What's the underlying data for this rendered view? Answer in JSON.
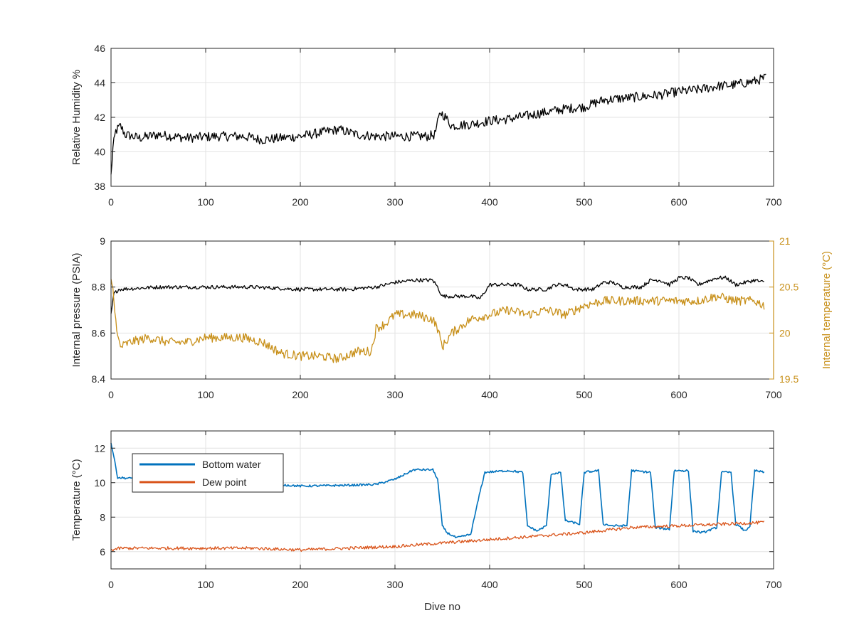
{
  "chart_data": [
    {
      "type": "line",
      "ylabel": "Relative Humidity %",
      "xlim": [
        0,
        700
      ],
      "ylim": [
        38,
        46
      ],
      "x_ticks": [
        0,
        100,
        200,
        300,
        400,
        500,
        600,
        700
      ],
      "y_ticks": [
        38,
        40,
        42,
        44,
        46
      ],
      "grid": true,
      "series": [
        {
          "color": "#000000",
          "noise": 0.28,
          "points": [
            [
              0,
              38.6
            ],
            [
              2,
              40.2
            ],
            [
              5,
              41.2
            ],
            [
              10,
              41.5
            ],
            [
              15,
              41.0
            ],
            [
              30,
              40.8
            ],
            [
              50,
              41.0
            ],
            [
              80,
              40.8
            ],
            [
              110,
              40.9
            ],
            [
              140,
              40.9
            ],
            [
              160,
              40.7
            ],
            [
              180,
              40.8
            ],
            [
              200,
              40.9
            ],
            [
              220,
              41.1
            ],
            [
              240,
              41.3
            ],
            [
              260,
              41.0
            ],
            [
              280,
              40.9
            ],
            [
              300,
              40.9
            ],
            [
              320,
              40.9
            ],
            [
              335,
              40.9
            ],
            [
              342,
              41.0
            ],
            [
              348,
              42.3
            ],
            [
              352,
              42.1
            ],
            [
              360,
              41.5
            ],
            [
              380,
              41.6
            ],
            [
              400,
              41.8
            ],
            [
              420,
              41.9
            ],
            [
              440,
              42.1
            ],
            [
              460,
              42.3
            ],
            [
              480,
              42.5
            ],
            [
              500,
              42.6
            ],
            [
              520,
              43.0
            ],
            [
              540,
              43.1
            ],
            [
              560,
              43.2
            ],
            [
              580,
              43.3
            ],
            [
              600,
              43.5
            ],
            [
              620,
              43.6
            ],
            [
              640,
              43.8
            ],
            [
              660,
              43.9
            ],
            [
              680,
              44.1
            ],
            [
              692,
              44.3
            ]
          ]
        }
      ]
    },
    {
      "type": "line",
      "ylabel": "Internal pressure (PSIA)",
      "y2label": "Internal temperature (°C)",
      "xlim": [
        0,
        700
      ],
      "ylim": [
        8.4,
        9
      ],
      "y2lim": [
        19.5,
        21
      ],
      "x_ticks": [
        0,
        100,
        200,
        300,
        400,
        500,
        600,
        700
      ],
      "y_ticks": [
        8.4,
        8.6,
        8.8,
        9
      ],
      "y2_ticks": [
        19.5,
        20,
        20.5,
        21
      ],
      "y2_tick_labels": [
        "19.5",
        "20",
        "20.5",
        "21"
      ],
      "grid": true,
      "series": [
        {
          "axis": "left",
          "color": "#000000",
          "noise": 0.008,
          "points": [
            [
              0,
              8.68
            ],
            [
              3,
              8.77
            ],
            [
              8,
              8.79
            ],
            [
              50,
              8.8
            ],
            [
              100,
              8.8
            ],
            [
              150,
              8.8
            ],
            [
              200,
              8.79
            ],
            [
              250,
              8.79
            ],
            [
              280,
              8.8
            ],
            [
              300,
              8.82
            ],
            [
              320,
              8.83
            ],
            [
              340,
              8.83
            ],
            [
              345,
              8.8
            ],
            [
              350,
              8.76
            ],
            [
              360,
              8.76
            ],
            [
              380,
              8.76
            ],
            [
              390,
              8.75
            ],
            [
              400,
              8.81
            ],
            [
              420,
              8.81
            ],
            [
              430,
              8.81
            ],
            [
              440,
              8.79
            ],
            [
              460,
              8.79
            ],
            [
              470,
              8.81
            ],
            [
              480,
              8.81
            ],
            [
              490,
              8.79
            ],
            [
              510,
              8.79
            ],
            [
              520,
              8.82
            ],
            [
              530,
              8.82
            ],
            [
              540,
              8.8
            ],
            [
              560,
              8.8
            ],
            [
              570,
              8.83
            ],
            [
              580,
              8.83
            ],
            [
              590,
              8.81
            ],
            [
              600,
              8.84
            ],
            [
              610,
              8.84
            ],
            [
              620,
              8.81
            ],
            [
              640,
              8.84
            ],
            [
              650,
              8.84
            ],
            [
              660,
              8.81
            ],
            [
              670,
              8.82
            ],
            [
              680,
              8.83
            ],
            [
              690,
              8.82
            ]
          ]
        },
        {
          "axis": "right",
          "color": "#C8901A",
          "noise": 0.05,
          "points": [
            [
              0,
              20.6
            ],
            [
              3,
              20.4
            ],
            [
              6,
              20.0
            ],
            [
              10,
              19.85
            ],
            [
              20,
              19.9
            ],
            [
              40,
              19.95
            ],
            [
              60,
              19.9
            ],
            [
              80,
              19.9
            ],
            [
              100,
              19.95
            ],
            [
              120,
              19.95
            ],
            [
              140,
              19.95
            ],
            [
              160,
              19.9
            ],
            [
              180,
              19.78
            ],
            [
              200,
              19.75
            ],
            [
              220,
              19.75
            ],
            [
              240,
              19.72
            ],
            [
              260,
              19.8
            ],
            [
              275,
              19.8
            ],
            [
              280,
              20.05
            ],
            [
              290,
              20.1
            ],
            [
              300,
              20.2
            ],
            [
              320,
              20.2
            ],
            [
              340,
              20.15
            ],
            [
              345,
              20.05
            ],
            [
              350,
              19.85
            ],
            [
              360,
              20.0
            ],
            [
              380,
              20.15
            ],
            [
              400,
              20.2
            ],
            [
              420,
              20.25
            ],
            [
              440,
              20.2
            ],
            [
              460,
              20.25
            ],
            [
              480,
              20.2
            ],
            [
              500,
              20.3
            ],
            [
              520,
              20.35
            ],
            [
              540,
              20.35
            ],
            [
              560,
              20.35
            ],
            [
              580,
              20.35
            ],
            [
              600,
              20.35
            ],
            [
              620,
              20.35
            ],
            [
              640,
              20.4
            ],
            [
              660,
              20.35
            ],
            [
              680,
              20.35
            ],
            [
              690,
              20.3
            ]
          ]
        }
      ]
    },
    {
      "type": "line",
      "xlabel": "Dive no",
      "ylabel": "Temperature (°C)",
      "xlim": [
        0,
        700
      ],
      "ylim": [
        5,
        13
      ],
      "x_ticks": [
        0,
        100,
        200,
        300,
        400,
        500,
        600,
        700
      ],
      "y_ticks": [
        6,
        8,
        10,
        12
      ],
      "grid": true,
      "legend": "top-left",
      "series": [
        {
          "name": "Bottom water",
          "color": "#0072BD",
          "noise": 0.06,
          "points": [
            [
              0,
              12.3
            ],
            [
              3,
              11.5
            ],
            [
              7,
              10.3
            ],
            [
              20,
              10.25
            ],
            [
              30,
              10.3
            ],
            [
              50,
              10.1
            ],
            [
              100,
              10.05
            ],
            [
              150,
              10.0
            ],
            [
              200,
              9.8
            ],
            [
              250,
              9.85
            ],
            [
              280,
              9.9
            ],
            [
              300,
              10.2
            ],
            [
              320,
              10.75
            ],
            [
              340,
              10.75
            ],
            [
              345,
              10.2
            ],
            [
              350,
              7.5
            ],
            [
              355,
              7.1
            ],
            [
              365,
              6.8
            ],
            [
              380,
              7.0
            ],
            [
              390,
              9.5
            ],
            [
              395,
              10.6
            ],
            [
              420,
              10.7
            ],
            [
              435,
              10.6
            ],
            [
              440,
              7.5
            ],
            [
              450,
              7.2
            ],
            [
              460,
              7.5
            ],
            [
              465,
              10.5
            ],
            [
              475,
              10.6
            ],
            [
              480,
              7.8
            ],
            [
              495,
              7.6
            ],
            [
              500,
              10.6
            ],
            [
              515,
              10.7
            ],
            [
              520,
              7.6
            ],
            [
              530,
              7.5
            ],
            [
              545,
              7.5
            ],
            [
              550,
              10.7
            ],
            [
              570,
              10.6
            ],
            [
              575,
              7.4
            ],
            [
              590,
              7.3
            ],
            [
              595,
              10.7
            ],
            [
              610,
              10.7
            ],
            [
              615,
              7.2
            ],
            [
              625,
              7.1
            ],
            [
              640,
              7.4
            ],
            [
              645,
              10.6
            ],
            [
              655,
              10.6
            ],
            [
              660,
              7.6
            ],
            [
              670,
              7.2
            ],
            [
              675,
              7.5
            ],
            [
              680,
              10.7
            ],
            [
              690,
              10.6
            ]
          ]
        },
        {
          "name": "Dew point",
          "color": "#D95319",
          "noise": 0.09,
          "points": [
            [
              0,
              6.1
            ],
            [
              10,
              6.2
            ],
            [
              50,
              6.2
            ],
            [
              100,
              6.2
            ],
            [
              150,
              6.2
            ],
            [
              200,
              6.1
            ],
            [
              250,
              6.2
            ],
            [
              300,
              6.3
            ],
            [
              350,
              6.5
            ],
            [
              400,
              6.7
            ],
            [
              450,
              6.9
            ],
            [
              500,
              7.1
            ],
            [
              550,
              7.4
            ],
            [
              600,
              7.5
            ],
            [
              650,
              7.6
            ],
            [
              690,
              7.7
            ]
          ]
        }
      ]
    }
  ]
}
